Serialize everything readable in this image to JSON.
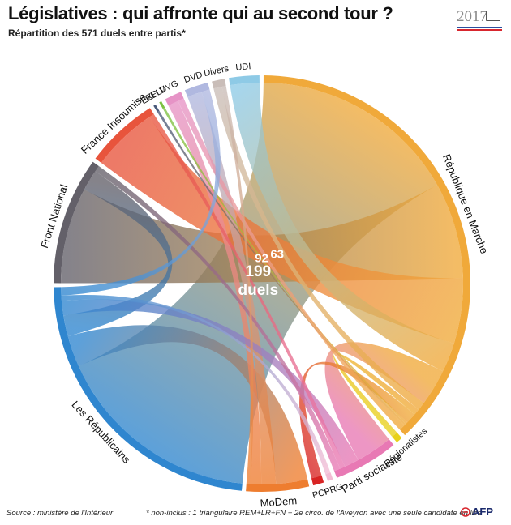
{
  "header": {
    "title": "Législatives : qui affronte qui au second tour ?",
    "subtitle": "Répartition des 571 duels entre partis*",
    "year": "2017",
    "colors": {
      "blue": "#2a4f9e",
      "red": "#d8262e"
    }
  },
  "footer": {
    "source": "Source : ministère de l'Intérieur",
    "note": "* non-inclus : 1 triangulaire REM+LR+FN + 2e circo. de l'Aveyron avec une seule candidate en lice",
    "logo": "AFP",
    "logo_icon": "afp-logo-icon"
  },
  "chart_data": {
    "type": "chord",
    "title": "Législatives : qui affronte qui au second tour ?",
    "subtitle": "Répartition des 571 duels entre partis*",
    "total_duels": 571,
    "parties": [
      {
        "name": "UDI",
        "color": "#8ecae6"
      },
      {
        "name": "République en Marche",
        "color": "#f0a93a"
      },
      {
        "name": "Régionalistes",
        "color": "#e8d11a"
      },
      {
        "name": "Parti socialiste",
        "color": "#e879b4"
      },
      {
        "name": "PRG",
        "color": "#f2bcd4"
      },
      {
        "name": "PCF",
        "color": "#d82424"
      },
      {
        "name": "MoDem",
        "color": "#ee7d2f"
      },
      {
        "name": "Les Républicains",
        "color": "#2f86cf"
      },
      {
        "name": "Front National",
        "color": "#636069"
      },
      {
        "name": "France Insoumise",
        "color": "#e8543c"
      },
      {
        "name": "EXD",
        "color": "#4a5a7a"
      },
      {
        "name": "EELV",
        "color": "#7cc242"
      },
      {
        "name": "DVG",
        "color": "#e693c6"
      },
      {
        "name": "DVD",
        "color": "#b0b8e0"
      },
      {
        "name": "Divers",
        "color": "#c9bdb8"
      }
    ],
    "links": [
      {
        "source": "Les Républicains",
        "target": "République en Marche",
        "value": 199,
        "label": "199",
        "label2": "duels"
      },
      {
        "source": "Front National",
        "target": "République en Marche",
        "value": 92,
        "label": "92"
      },
      {
        "source": "France Insoumise",
        "target": "République en Marche",
        "value": 63,
        "label": "63"
      },
      {
        "source": "UDI",
        "target": "République en Marche",
        "value": 28
      },
      {
        "source": "République en Marche",
        "target": "Parti socialiste",
        "value": 35
      },
      {
        "source": "MoDem",
        "target": "Les Républicains",
        "value": 30
      },
      {
        "source": "Front National",
        "target": "Les Républicains",
        "value": 20
      },
      {
        "source": "DVD",
        "target": "MoDem",
        "value": 14
      },
      {
        "source": "DVG",
        "target": "MoDem",
        "value": 10
      },
      {
        "source": "Divers",
        "target": "République en Marche",
        "value": 8
      },
      {
        "source": "Régionalistes",
        "target": "République en Marche",
        "value": 6
      },
      {
        "source": "PCF",
        "target": "République en Marche",
        "value": 10
      },
      {
        "source": "Parti socialiste",
        "target": "Les Républicains",
        "value": 14
      },
      {
        "source": "France Insoumise",
        "target": "Parti socialiste",
        "value": 5
      },
      {
        "source": "Front National",
        "target": "Parti socialiste",
        "value": 6
      },
      {
        "source": "PRG",
        "target": "Les Républicains",
        "value": 5
      },
      {
        "source": "EELV",
        "target": "République en Marche",
        "value": 2
      },
      {
        "source": "EXD",
        "target": "République en Marche",
        "value": 2
      },
      {
        "source": "DVG",
        "target": "République en Marche",
        "value": 6
      },
      {
        "source": "DVD",
        "target": "Les Républicains",
        "value": 8
      },
      {
        "source": "Divers",
        "target": "MoDem",
        "value": 4
      }
    ]
  }
}
